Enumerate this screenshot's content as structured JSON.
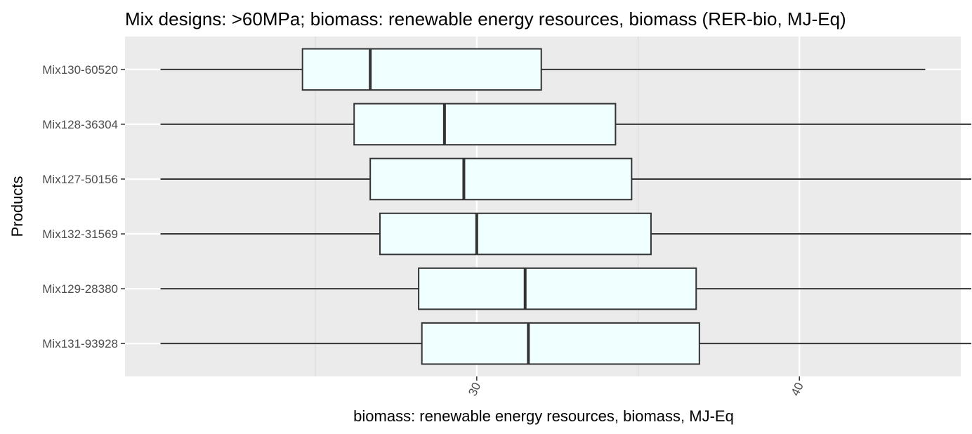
{
  "chart_data": {
    "type": "boxplot",
    "orientation": "horizontal",
    "title": "Mix designs: >60MPa; biomass: renewable energy resources, biomass (RER-bio, MJ-Eq)",
    "xlabel": "biomass: renewable energy resources, biomass, MJ-Eq",
    "ylabel": "Products",
    "xlim": [
      19.1,
      45.0
    ],
    "x_ticks": [
      30,
      40
    ],
    "x_tick_labels": [
      "30",
      "40"
    ],
    "x_minor_ticks": [
      25,
      35,
      45
    ],
    "grid": true,
    "categories": [
      "Mix130-60520",
      "Mix128-36304",
      "Mix127-50156",
      "Mix132-31569",
      "Mix129-28380",
      "Mix131-93928"
    ],
    "boxes": [
      {
        "category": "Mix130-60520",
        "whisker_low": 20.2,
        "q1": 24.6,
        "median": 26.7,
        "q3": 32.0,
        "whisker_high": 43.9
      },
      {
        "category": "Mix128-36304",
        "whisker_low": 20.2,
        "q1": 26.2,
        "median": 29.0,
        "q3": 34.3,
        "whisker_high": 46.1
      },
      {
        "category": "Mix127-50156",
        "whisker_low": 20.2,
        "q1": 26.7,
        "median": 29.6,
        "q3": 34.8,
        "whisker_high": 46.2
      },
      {
        "category": "Mix132-31569",
        "whisker_low": 20.2,
        "q1": 27.0,
        "median": 30.0,
        "q3": 35.4,
        "whisker_high": 46.2
      },
      {
        "category": "Mix129-28380",
        "whisker_low": 20.2,
        "q1": 28.2,
        "median": 31.5,
        "q3": 36.8,
        "whisker_high": 46.2
      },
      {
        "category": "Mix131-93928",
        "whisker_low": 20.2,
        "q1": 28.3,
        "median": 31.6,
        "q3": 36.9,
        "whisker_high": 46.2
      }
    ],
    "colors": {
      "panel_background": "#ebebeb",
      "grid_major": "#ffffff",
      "grid_minor": "#d9d9d9",
      "box_fill": "#f0ffff",
      "box_stroke": "#333333"
    }
  }
}
